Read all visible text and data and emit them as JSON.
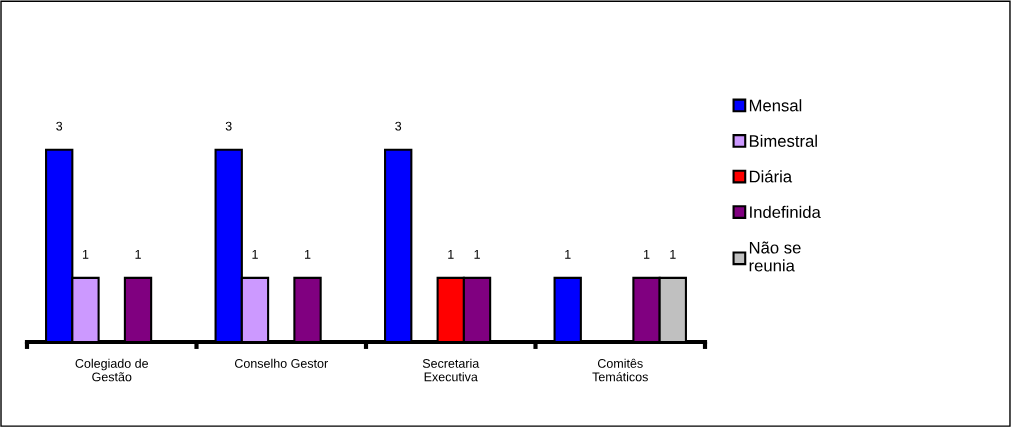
{
  "chart_data": {
    "type": "bar",
    "categories": [
      "Colegiado de\nGestão",
      "Conselho Gestor",
      "Secretaria\nExecutiva",
      "Comitês\nTemáticos"
    ],
    "series": [
      {
        "name": "Mensal",
        "color": "#0000ff",
        "values": [
          3,
          3,
          3,
          1
        ]
      },
      {
        "name": "Bimestral",
        "color": "#cc99ff",
        "values": [
          1,
          1,
          null,
          null
        ]
      },
      {
        "name": "Diária",
        "color": "#ff0000",
        "values": [
          null,
          null,
          1,
          null
        ]
      },
      {
        "name": "Indefinida",
        "color": "#800080",
        "values": [
          1,
          1,
          1,
          1
        ]
      },
      {
        "name": "Não se\nreunia",
        "color": "#c0c0c0",
        "values": [
          null,
          null,
          null,
          1
        ]
      }
    ],
    "data_labels": true,
    "legend": "right",
    "grid": false
  }
}
